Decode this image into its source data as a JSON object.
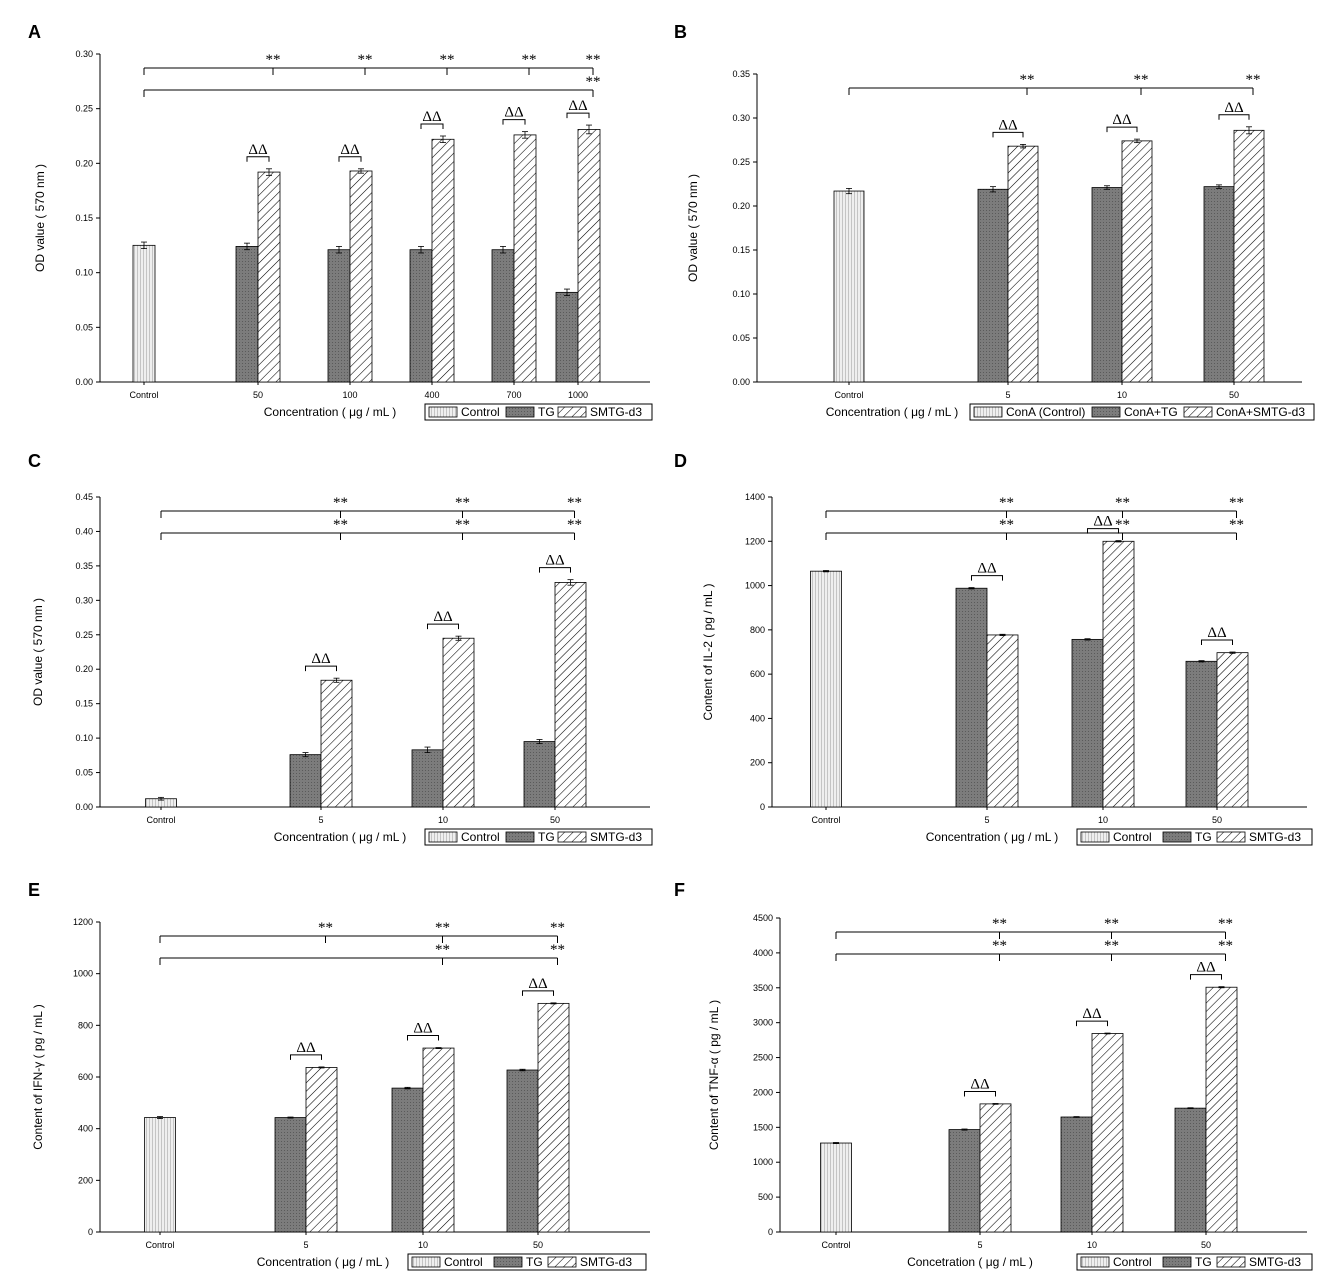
{
  "colors": {
    "tg": "#7c7c7c",
    "control": "#efefef",
    "smtg": "#ffffff",
    "axis": "#000000"
  },
  "chart_data": [
    {
      "panel": "A",
      "type": "bar",
      "ylabel": "OD value ( 570 nm )",
      "xlabel": "Concentration ( μg / mL )",
      "ylim": [
        0,
        0.3
      ],
      "yticks": [
        0.0,
        0.05,
        0.1,
        0.15,
        0.2,
        0.25,
        0.3
      ],
      "ytick_decimals": 2,
      "categories": [
        "Control",
        "50",
        "100",
        "400",
        "700",
        "1000"
      ],
      "series": [
        {
          "name": "Control",
          "style": "control",
          "values": [
            0.125,
            null,
            null,
            null,
            null,
            null
          ],
          "errors": [
            0.003,
            null,
            null,
            null,
            null,
            null
          ]
        },
        {
          "name": "TG",
          "style": "tg",
          "values": [
            null,
            0.124,
            0.121,
            0.121,
            0.121,
            0.082
          ],
          "errors": [
            null,
            0.003,
            0.003,
            0.003,
            0.003,
            0.003
          ]
        },
        {
          "name": "SMTG-d3",
          "style": "smtg",
          "values": [
            null,
            0.192,
            0.193,
            0.222,
            0.226,
            0.231
          ],
          "errors": [
            null,
            0.003,
            0.002,
            0.003,
            0.003,
            0.004
          ]
        }
      ],
      "legend_labels": [
        "Control",
        "TG",
        "SMTG-d3"
      ],
      "delta_label": "ΔΔ",
      "delta_categories": [
        1,
        2,
        3,
        4,
        5
      ],
      "sig_label": "**",
      "sig_rows": [
        {
          "level": 0,
          "from": 0,
          "to": 5,
          "marks": [
            1,
            2,
            3,
            4,
            5
          ]
        },
        {
          "level": 1,
          "from": 0,
          "to": 5,
          "marks": [
            5
          ],
          "series_index": 1
        }
      ]
    },
    {
      "panel": "B",
      "type": "bar",
      "ylabel": "OD value ( 570 nm )",
      "xlabel": "Concentration ( μg / mL )",
      "ylim": [
        0,
        0.35
      ],
      "yticks": [
        0.0,
        0.05,
        0.1,
        0.15,
        0.2,
        0.25,
        0.3,
        0.35
      ],
      "ytick_decimals": 2,
      "categories": [
        "Control",
        "5",
        "10",
        "50"
      ],
      "series": [
        {
          "name": "ConA (Control)",
          "style": "control",
          "values": [
            0.217,
            null,
            null,
            null
          ],
          "errors": [
            0.003,
            null,
            null,
            null
          ]
        },
        {
          "name": "ConA+TG",
          "style": "tg",
          "values": [
            null,
            0.219,
            0.221,
            0.222
          ],
          "errors": [
            null,
            0.003,
            0.002,
            0.002
          ]
        },
        {
          "name": "ConA+SMTG-d3",
          "style": "smtg",
          "values": [
            null,
            0.268,
            0.274,
            0.286
          ],
          "errors": [
            null,
            0.002,
            0.002,
            0.004
          ]
        }
      ],
      "legend_labels": [
        "ConA (Control)",
        "ConA+TG",
        "ConA+SMTG-d3"
      ],
      "delta_label": "ΔΔ",
      "delta_categories": [
        1,
        2,
        3
      ],
      "sig_label": "**",
      "sig_rows": [
        {
          "level": 0,
          "from": 0,
          "to": 3,
          "marks": [
            1,
            2,
            3
          ]
        }
      ]
    },
    {
      "panel": "C",
      "type": "bar",
      "ylabel": "OD value ( 570 nm )",
      "xlabel": "Concentration ( μg / mL )",
      "ylim": [
        0,
        0.45
      ],
      "yticks": [
        0.0,
        0.05,
        0.1,
        0.15,
        0.2,
        0.25,
        0.3,
        0.35,
        0.4,
        0.45
      ],
      "ytick_decimals": 2,
      "categories": [
        "Control",
        "5",
        "10",
        "50"
      ],
      "series": [
        {
          "name": "Control",
          "style": "control",
          "values": [
            0.012,
            null,
            null,
            null
          ],
          "errors": [
            0.002,
            null,
            null,
            null
          ]
        },
        {
          "name": "TG",
          "style": "tg",
          "values": [
            null,
            0.076,
            0.083,
            0.095
          ],
          "errors": [
            null,
            0.003,
            0.004,
            0.003
          ]
        },
        {
          "name": "SMTG-d3",
          "style": "smtg",
          "values": [
            null,
            0.184,
            0.245,
            0.326
          ],
          "errors": [
            null,
            0.003,
            0.003,
            0.004
          ]
        }
      ],
      "legend_labels": [
        "Control",
        "TG",
        "SMTG-d3"
      ],
      "delta_label": "ΔΔ",
      "delta_categories": [
        1,
        2,
        3
      ],
      "sig_label": "**",
      "sig_rows": [
        {
          "level": 0,
          "from": 0,
          "to": 3,
          "marks": [
            1,
            2,
            3
          ]
        },
        {
          "level": 1,
          "from": 0,
          "to": 3,
          "marks": [
            1,
            2,
            3
          ],
          "series_index": 1
        }
      ]
    },
    {
      "panel": "D",
      "type": "bar",
      "ylabel": "Content of IL-2 ( pg / mL )",
      "xlabel": "Concentration ( μg / mL )",
      "ylim": [
        0,
        1400
      ],
      "yticks": [
        0,
        200,
        400,
        600,
        800,
        1000,
        1200,
        1400
      ],
      "ytick_decimals": 0,
      "categories": [
        "Control",
        "5",
        "10",
        "50"
      ],
      "series": [
        {
          "name": "Control",
          "style": "control",
          "values": [
            1065,
            null,
            null,
            null
          ],
          "errors": [
            3,
            null,
            null,
            null
          ]
        },
        {
          "name": "TG",
          "style": "tg",
          "values": [
            null,
            988,
            757,
            658
          ],
          "errors": [
            null,
            3,
            3,
            3
          ]
        },
        {
          "name": "SMTG-d3",
          "style": "smtg",
          "values": [
            null,
            777,
            1200,
            697
          ],
          "errors": [
            null,
            3,
            3,
            3
          ]
        }
      ],
      "legend_labels": [
        "Control",
        "TG",
        "SMTG-d3"
      ],
      "delta_label": "ΔΔ",
      "delta_categories": [
        1,
        2,
        3
      ],
      "sig_label": "**",
      "sig_rows": [
        {
          "level": 0,
          "from": 0,
          "to": 3,
          "marks": [
            1,
            2,
            3
          ]
        },
        {
          "level": 1,
          "from": 0,
          "to": 3,
          "marks": [
            1,
            2,
            3
          ],
          "series_index": 1
        }
      ]
    },
    {
      "panel": "E",
      "type": "bar",
      "ylabel": "Content of IFN-γ ( pg / mL )",
      "xlabel": "Concentration ( μg / mL )",
      "ylim": [
        0,
        1200
      ],
      "yticks": [
        0,
        200,
        400,
        600,
        800,
        1000,
        1200
      ],
      "ytick_decimals": 0,
      "categories": [
        "Control",
        "5",
        "10",
        "50"
      ],
      "series": [
        {
          "name": "Control",
          "style": "control",
          "values": [
            443,
            null,
            null,
            null
          ],
          "errors": [
            4,
            null,
            null,
            null
          ]
        },
        {
          "name": "TG",
          "style": "tg",
          "values": [
            null,
            443,
            557,
            627
          ],
          "errors": [
            null,
            2,
            3,
            3
          ]
        },
        {
          "name": "SMTG-d3",
          "style": "smtg",
          "values": [
            null,
            637,
            712,
            885
          ],
          "errors": [
            null,
            2,
            2,
            2
          ]
        }
      ],
      "legend_labels": [
        "Control",
        "TG",
        "SMTG-d3"
      ],
      "delta_label": "ΔΔ",
      "delta_categories": [
        1,
        2,
        3
      ],
      "sig_label": "**",
      "sig_rows": [
        {
          "level": 0,
          "from": 0,
          "to": 3,
          "marks": [
            1,
            2,
            3
          ]
        },
        {
          "level": 1,
          "from": 0,
          "to": 3,
          "marks": [
            2,
            3
          ],
          "series_index": 1
        }
      ]
    },
    {
      "panel": "F",
      "type": "bar",
      "ylabel": "Content of TNF-α ( pg / mL )",
      "xlabel": "Concetration ( μg / mL )",
      "ylim": [
        0,
        4500
      ],
      "yticks": [
        0,
        500,
        1000,
        1500,
        2000,
        2500,
        3000,
        3500,
        4000,
        4500
      ],
      "ytick_decimals": 0,
      "categories": [
        "Control",
        "5",
        "10",
        "50"
      ],
      "series": [
        {
          "name": "Control",
          "style": "control",
          "values": [
            1275,
            null,
            null,
            null
          ],
          "errors": [
            8,
            null,
            null,
            null
          ]
        },
        {
          "name": "TG",
          "style": "tg",
          "values": [
            null,
            1468,
            1648,
            1775
          ],
          "errors": [
            null,
            8,
            6,
            6
          ]
        },
        {
          "name": "SMTG-d3",
          "style": "smtg",
          "values": [
            null,
            1836,
            2845,
            3508
          ],
          "errors": [
            null,
            6,
            6,
            8
          ]
        }
      ],
      "legend_labels": [
        "Control",
        "TG",
        "SMTG-d3"
      ],
      "delta_label": "ΔΔ",
      "delta_categories": [
        1,
        2,
        3
      ],
      "sig_label": "**",
      "sig_rows": [
        {
          "level": 0,
          "from": 0,
          "to": 3,
          "marks": [
            1,
            2,
            3
          ]
        },
        {
          "level": 1,
          "from": 0,
          "to": 3,
          "marks": [
            1,
            2,
            3
          ],
          "series_index": 1
        }
      ]
    }
  ]
}
